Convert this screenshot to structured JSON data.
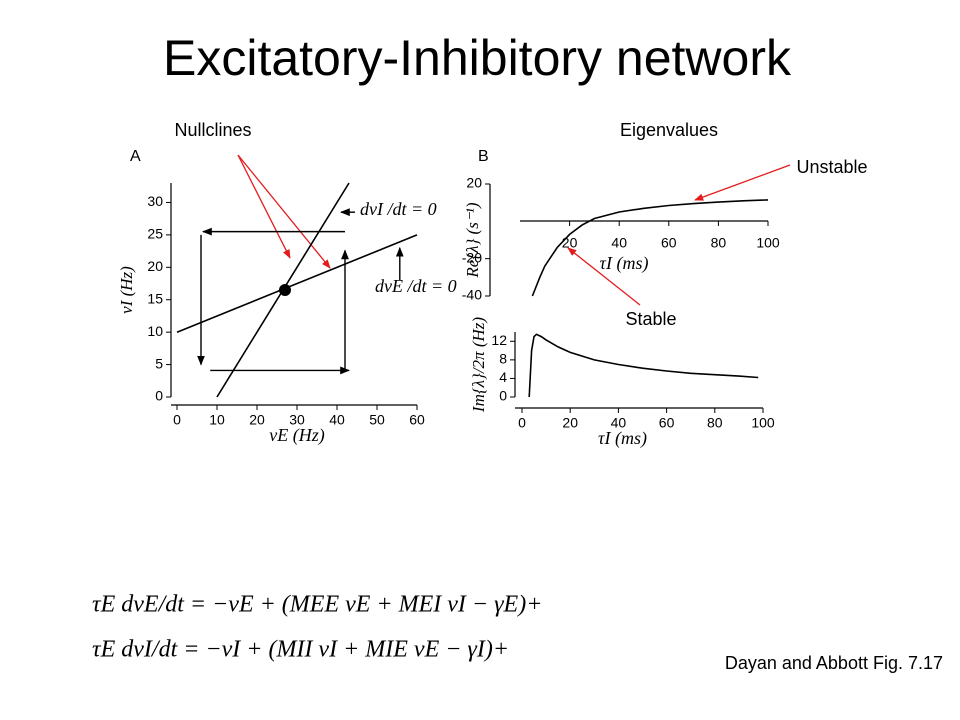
{
  "title": "Excitatory-Inhibitory network",
  "annotations": {
    "nullclines": "Nullclines",
    "eigenvalues": "Eigenvalues",
    "unstable": "Unstable",
    "stable": "Stable",
    "citation": "Dayan and Abbott Fig. 7.17"
  },
  "equations": [
    "τE dvE/dt = −vE + (MEE vE + MEI vI − γE)+",
    "τE dvI/dt = −vI + (MII vI + MIE vE − γI)+"
  ],
  "chart_data": [
    {
      "type": "line",
      "panel_label": "A",
      "xlabel": "vE (Hz)",
      "ylabel": "vI (Hz)",
      "xlim": [
        0,
        60
      ],
      "ylim": [
        0,
        33
      ],
      "xticks": [
        0,
        10,
        20,
        30,
        40,
        50,
        60
      ],
      "yticks": [
        0,
        5,
        10,
        15,
        20,
        25,
        30
      ],
      "series": [
        {
          "name": "dvI /dt = 0",
          "color": "#000000",
          "x": [
            10,
            43
          ],
          "y": [
            0,
            33
          ]
        },
        {
          "name": "dvE /dt = 0",
          "color": "#000000",
          "x": [
            0,
            60
          ],
          "y": [
            10,
            25
          ]
        }
      ],
      "arrows": [
        {
          "x": [
            42,
            6.5
          ],
          "y": [
            25.5,
            25.5
          ]
        },
        {
          "x": [
            6,
            6
          ],
          "y": [
            25,
            5
          ]
        },
        {
          "x": [
            8.3,
            43
          ],
          "y": [
            4.1,
            4.1
          ]
        },
        {
          "x": [
            42,
            42
          ],
          "y": [
            4.1,
            22.6
          ]
        },
        {
          "x": [
            44.5,
            41
          ],
          "y": [
            28.5,
            28.5
          ]
        },
        {
          "x": [
            55.7,
            55.7
          ],
          "y": [
            18,
            23
          ]
        }
      ],
      "points": {
        "x": [
          27
        ],
        "y": [
          16.5
        ]
      }
    },
    {
      "type": "line",
      "panel_label": "B",
      "xlabel": "τI (ms)",
      "ylabel": "Re{λ} (s⁻¹)",
      "xlim": [
        0,
        100
      ],
      "ylim": [
        -40,
        20
      ],
      "xticks": [
        20,
        40,
        60,
        80,
        100
      ],
      "yticks": [
        -40,
        -20,
        20
      ],
      "series": [
        {
          "color": "#000000",
          "x": [
            5,
            8,
            10,
            15,
            20,
            25,
            30,
            40,
            50,
            60,
            70,
            80,
            90,
            100
          ],
          "y": [
            -40,
            -30,
            -24,
            -14,
            -7,
            -2,
            1.5,
            5,
            7,
            8.5,
            9.5,
            10.3,
            11,
            11.5
          ]
        }
      ]
    },
    {
      "type": "line",
      "xlabel": "τI (ms)",
      "ylabel": "Im{λ}/2π (Hz)",
      "xlim": [
        0,
        100
      ],
      "ylim": [
        0,
        14
      ],
      "xticks": [
        0,
        20,
        40,
        60,
        80,
        100
      ],
      "yticks": [
        0,
        4,
        8,
        12
      ],
      "series": [
        {
          "color": "#000000",
          "x": [
            3,
            4,
            5,
            6,
            8,
            10,
            15,
            20,
            30,
            40,
            50,
            60,
            70,
            80,
            90,
            98
          ],
          "y": [
            0,
            10,
            13,
            13.5,
            13,
            12.3,
            10.8,
            9.6,
            8,
            7,
            6.2,
            5.6,
            5.1,
            4.8,
            4.5,
            4.2
          ]
        }
      ]
    }
  ]
}
